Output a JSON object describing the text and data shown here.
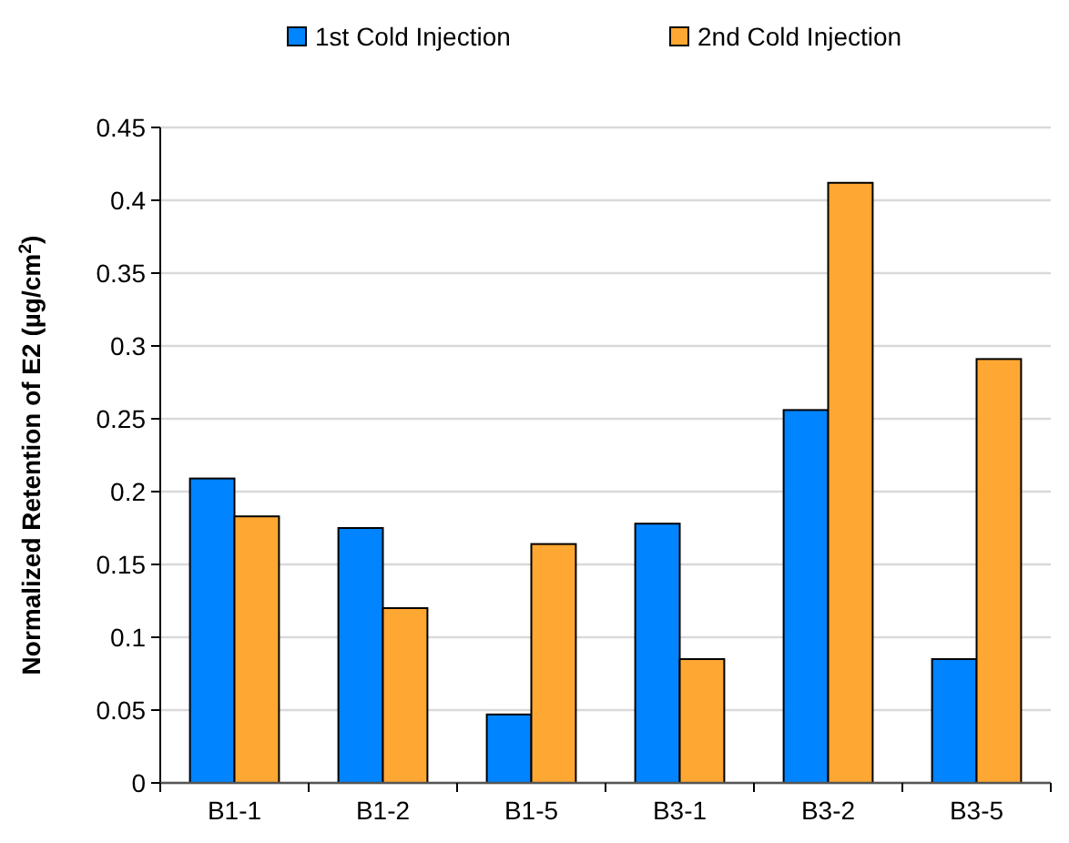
{
  "chart_data": {
    "type": "bar",
    "ylabel": "Normalized Retention of E2 (µg/cm$^{2}$)",
    "categories": [
      "B1-1",
      "B1-2",
      "B1-5",
      "B3-1",
      "B3-2",
      "B3-5"
    ],
    "series": [
      {
        "name": "1st Cold Injection",
        "color": "#0084ff",
        "values": [
          0.209,
          0.175,
          0.047,
          0.178,
          0.256,
          0.085
        ]
      },
      {
        "name": "2nd Cold Injection",
        "color": "#ffa733",
        "values": [
          0.183,
          0.12,
          0.164,
          0.085,
          0.412,
          0.291
        ]
      }
    ],
    "ylim": [
      0,
      0.45
    ],
    "yticks": [
      0,
      0.05,
      0.1,
      0.15,
      0.2,
      0.25,
      0.3,
      0.35,
      0.4,
      0.45
    ],
    "grid": "y",
    "legend": "top"
  }
}
